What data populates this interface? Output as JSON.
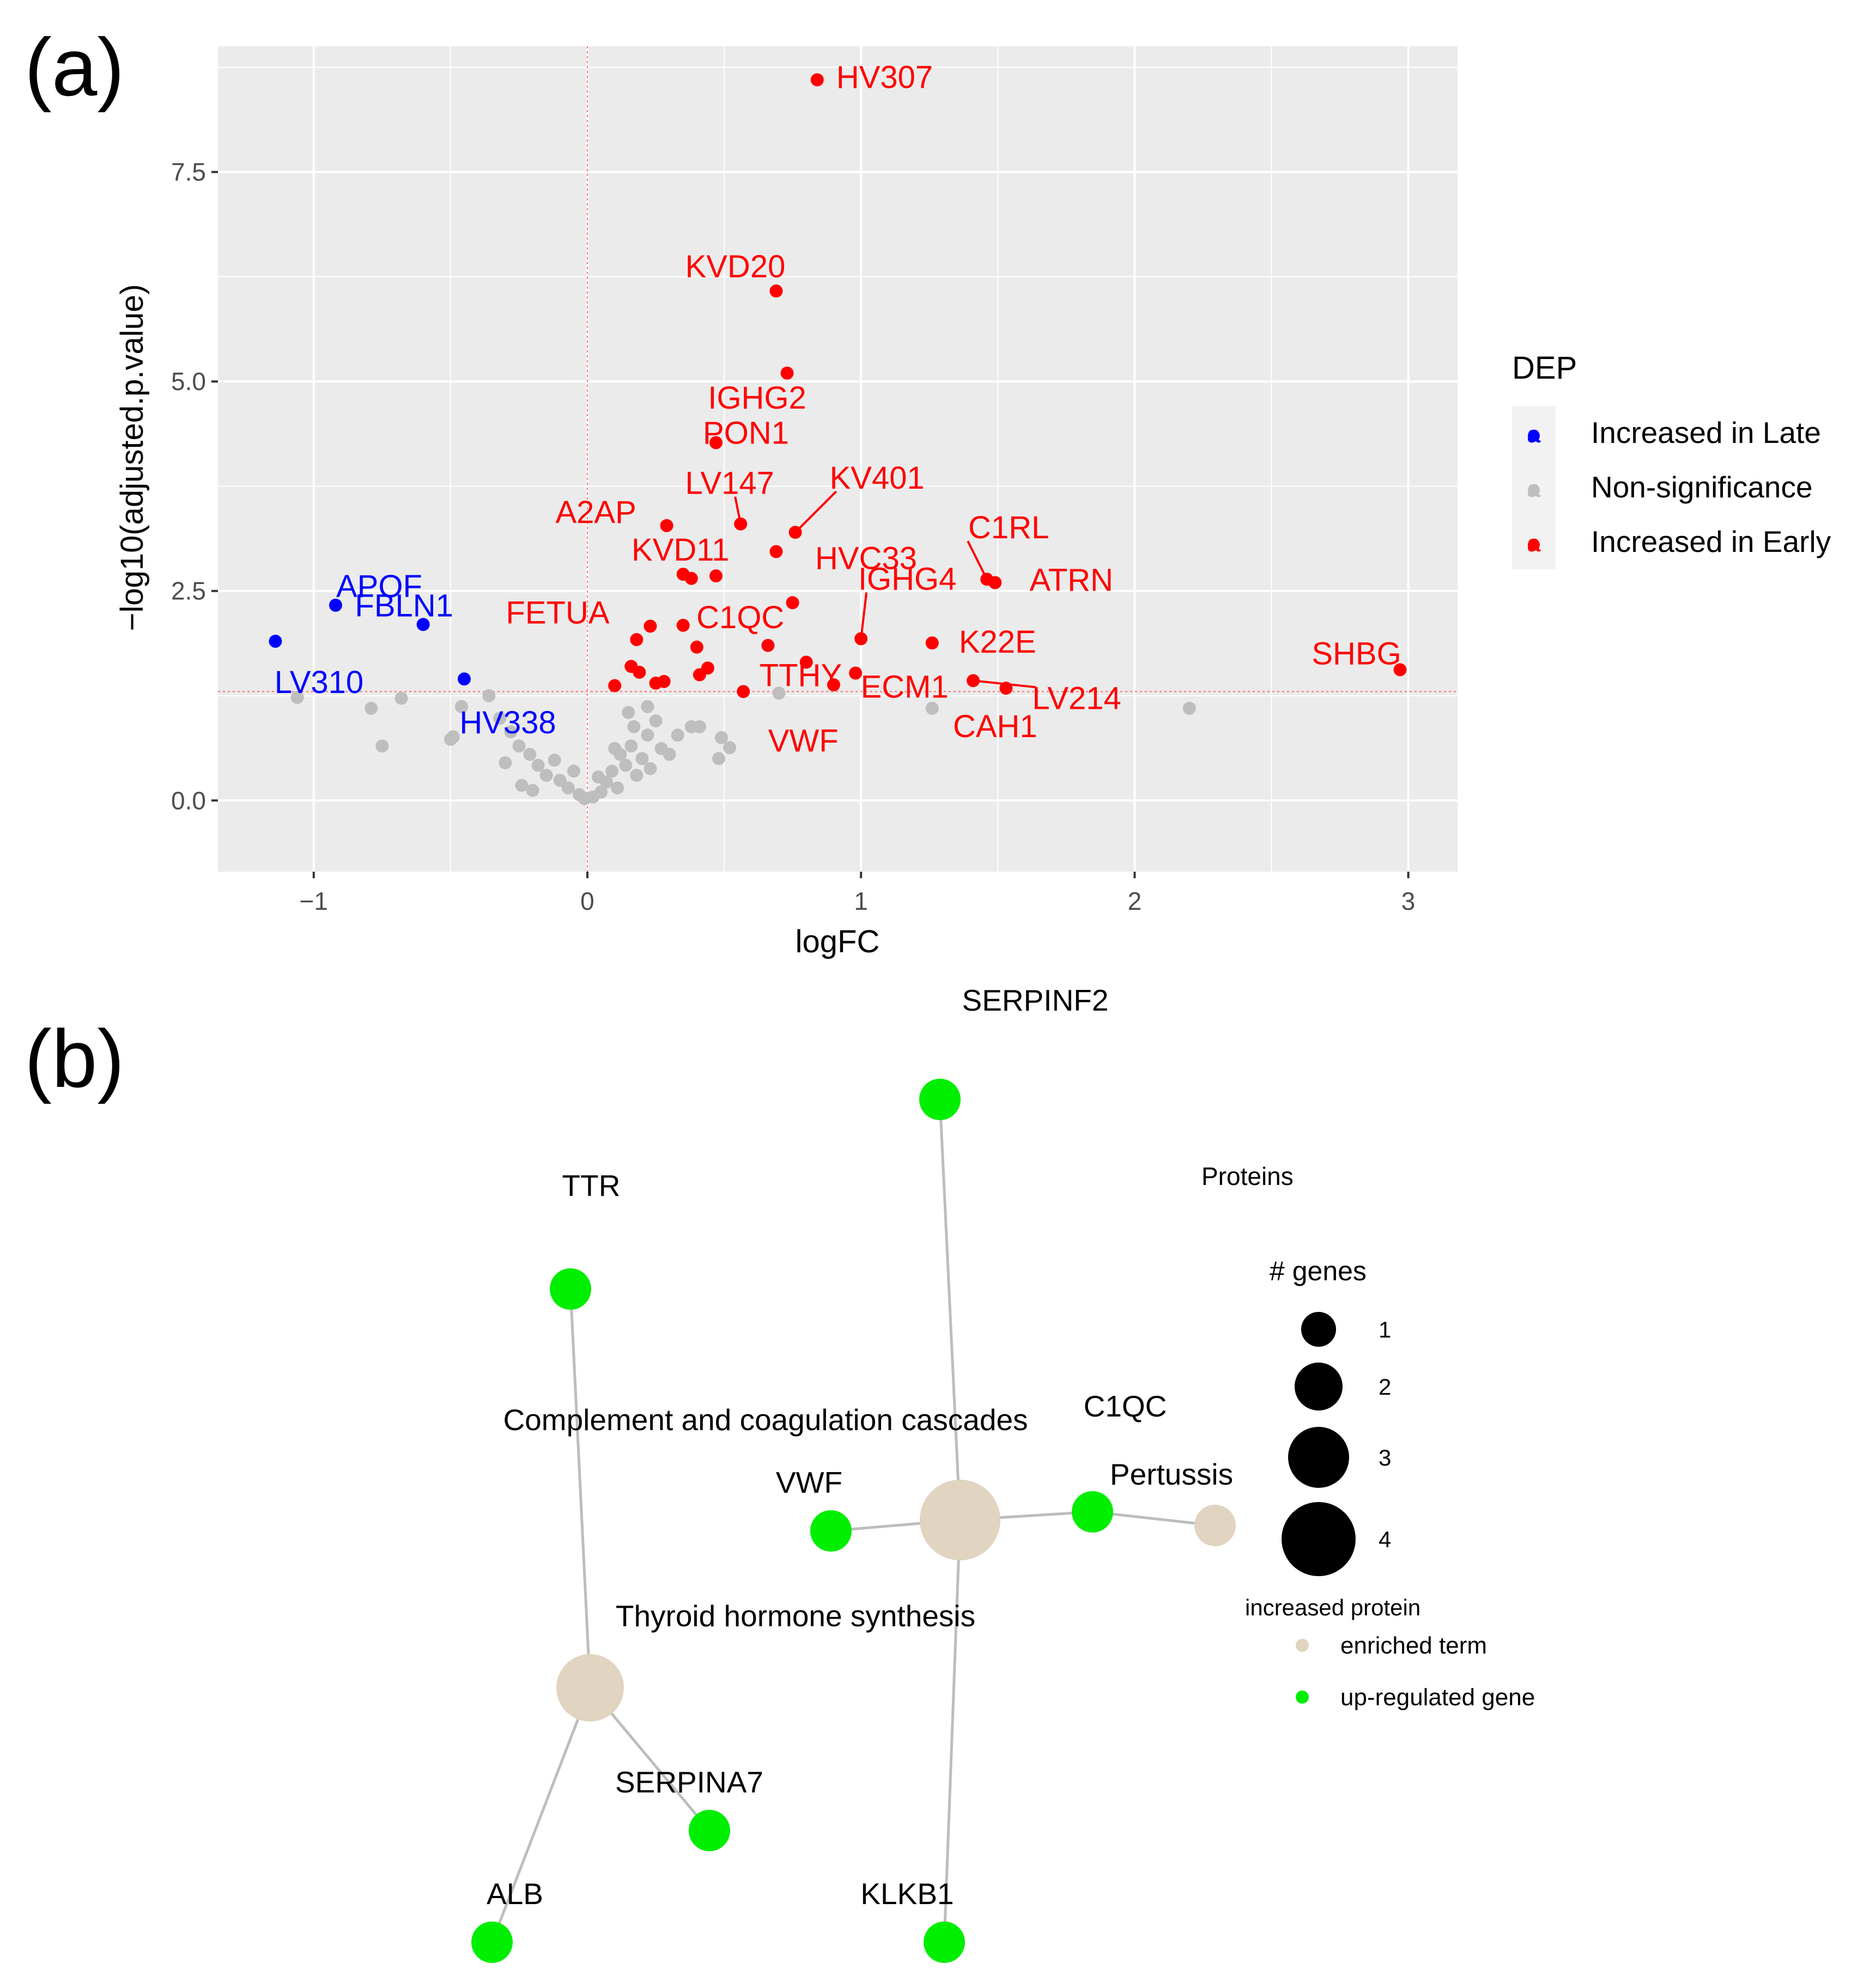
{
  "figure": {
    "panel_a_label": "(a)",
    "panel_b_label": "(b)"
  },
  "chart_data": [
    {
      "type": "scatter",
      "title": "",
      "xlabel": "logFC",
      "ylabel": "−log10(adjusted.p.value)",
      "xlim": [
        -1.35,
        3.18
      ],
      "ylim": [
        -0.85,
        9.0
      ],
      "xticks": [
        {
          "v": -1,
          "label": "−1"
        },
        {
          "v": 0,
          "label": "0"
        },
        {
          "v": 1,
          "label": "1"
        },
        {
          "v": 2,
          "label": "2"
        },
        {
          "v": 3,
          "label": "3"
        }
      ],
      "yticks": [
        {
          "v": 0,
          "label": "0.0"
        },
        {
          "v": 2.5,
          "label": "2.5"
        },
        {
          "v": 5,
          "label": "5.0"
        },
        {
          "v": 7.5,
          "label": "7.5"
        }
      ],
      "grid": true,
      "threshold": {
        "logFC": 0,
        "neglog10p": 1.3
      },
      "colors": {
        "late": "#0000ff",
        "ns": "#bebebe",
        "early": "#ff0000",
        "panel_bg": "#ebebeb",
        "grid": "#ffffff",
        "threshold": "#ff6b6b"
      },
      "legend": {
        "title": "DEP",
        "position": "right",
        "glyph": "a",
        "entries": [
          {
            "label": "Increased in Late",
            "group": "late"
          },
          {
            "label": "Non-significance",
            "group": "ns"
          },
          {
            "label": "Increased in Early",
            "group": "early"
          }
        ]
      },
      "series": [
        {
          "name": "Increased in Late",
          "group": "late",
          "points": [
            {
              "x": -1.14,
              "y": 1.9,
              "label": "LV310"
            },
            {
              "x": -0.92,
              "y": 2.33,
              "label": "APOF"
            },
            {
              "x": -0.6,
              "y": 2.1,
              "label": "FBLN1"
            },
            {
              "x": -0.45,
              "y": 1.45,
              "label": "HV338"
            }
          ]
        },
        {
          "name": "Increased in Early",
          "group": "early",
          "points": [
            {
              "x": 0.84,
              "y": 8.6,
              "label": "HV307"
            },
            {
              "x": 0.69,
              "y": 6.08,
              "label": "KVD20"
            },
            {
              "x": 0.73,
              "y": 5.1,
              "label": "IGHG2"
            },
            {
              "x": 0.47,
              "y": 4.27,
              "label": "PON1"
            },
            {
              "x": 0.56,
              "y": 3.3,
              "label": "LV147"
            },
            {
              "x": 0.76,
              "y": 3.2,
              "label": "KV401"
            },
            {
              "x": 0.29,
              "y": 3.28,
              "label": "A2AP"
            },
            {
              "x": 0.69,
              "y": 2.97,
              "label": "HVC33"
            },
            {
              "x": 1.46,
              "y": 2.64,
              "label": "C1RL"
            },
            {
              "x": 1.49,
              "y": 2.6,
              "label": "ATRN"
            },
            {
              "x": 0.35,
              "y": 2.7,
              "label": "KVD11"
            },
            {
              "x": 0.38,
              "y": 2.65
            },
            {
              "x": 0.47,
              "y": 2.68
            },
            {
              "x": 0.75,
              "y": 2.36
            },
            {
              "x": 0.23,
              "y": 2.08,
              "label": "FETUA"
            },
            {
              "x": 0.35,
              "y": 2.09,
              "label": "C1QC"
            },
            {
              "x": 1.0,
              "y": 1.93,
              "label": "IGHG4"
            },
            {
              "x": 0.18,
              "y": 1.92
            },
            {
              "x": 0.66,
              "y": 1.85,
              "label": "TTHY"
            },
            {
              "x": 1.26,
              "y": 1.88,
              "label": "K22E"
            },
            {
              "x": 0.4,
              "y": 1.83
            },
            {
              "x": 0.8,
              "y": 1.65
            },
            {
              "x": 0.98,
              "y": 1.52,
              "label": "ECM1"
            },
            {
              "x": 1.41,
              "y": 1.43,
              "label": "LV214"
            },
            {
              "x": 1.53,
              "y": 1.34,
              "label": "CAH1"
            },
            {
              "x": 0.57,
              "y": 1.3,
              "label": "VWF"
            },
            {
              "x": 0.9,
              "y": 1.38
            },
            {
              "x": 0.44,
              "y": 1.58
            },
            {
              "x": 0.41,
              "y": 1.5
            },
            {
              "x": 0.16,
              "y": 1.6
            },
            {
              "x": 0.19,
              "y": 1.53
            },
            {
              "x": 0.25,
              "y": 1.4
            },
            {
              "x": 0.28,
              "y": 1.42
            },
            {
              "x": 0.1,
              "y": 1.37
            },
            {
              "x": 2.97,
              "y": 1.56,
              "label": "SHBG"
            }
          ]
        },
        {
          "name": "Non-significance",
          "group": "ns",
          "points": [
            {
              "x": -1.06,
              "y": 1.23
            },
            {
              "x": -0.79,
              "y": 1.1
            },
            {
              "x": -0.75,
              "y": 0.65
            },
            {
              "x": -0.68,
              "y": 1.22
            },
            {
              "x": -0.5,
              "y": 0.73
            },
            {
              "x": -0.49,
              "y": 0.76
            },
            {
              "x": -0.46,
              "y": 1.12
            },
            {
              "x": -0.36,
              "y": 1.25
            },
            {
              "x": -0.32,
              "y": 0.98
            },
            {
              "x": -0.28,
              "y": 0.82
            },
            {
              "x": -0.25,
              "y": 0.65
            },
            {
              "x": -0.21,
              "y": 0.55
            },
            {
              "x": -0.18,
              "y": 0.42
            },
            {
              "x": -0.2,
              "y": 0.12
            },
            {
              "x": -0.15,
              "y": 0.3
            },
            {
              "x": -0.12,
              "y": 0.48
            },
            {
              "x": -0.1,
              "y": 0.24
            },
            {
              "x": -0.07,
              "y": 0.15
            },
            {
              "x": -0.05,
              "y": 0.35
            },
            {
              "x": -0.03,
              "y": 0.07
            },
            {
              "x": -0.01,
              "y": 0.02
            },
            {
              "x": 0.02,
              "y": 0.04
            },
            {
              "x": 0.05,
              "y": 0.1
            },
            {
              "x": 0.07,
              "y": 0.22
            },
            {
              "x": 0.09,
              "y": 0.35
            },
            {
              "x": 0.11,
              "y": 0.15
            },
            {
              "x": 0.12,
              "y": 0.55
            },
            {
              "x": 0.14,
              "y": 0.42
            },
            {
              "x": 0.16,
              "y": 0.65
            },
            {
              "x": 0.18,
              "y": 0.3
            },
            {
              "x": 0.2,
              "y": 0.5
            },
            {
              "x": 0.22,
              "y": 0.78
            },
            {
              "x": 0.15,
              "y": 1.05
            },
            {
              "x": 0.22,
              "y": 1.12
            },
            {
              "x": 0.25,
              "y": 0.95
            },
            {
              "x": 0.27,
              "y": 0.62
            },
            {
              "x": 0.3,
              "y": 0.55
            },
            {
              "x": 0.33,
              "y": 0.78
            },
            {
              "x": 0.38,
              "y": 0.88
            },
            {
              "x": 0.41,
              "y": 0.88
            },
            {
              "x": 0.49,
              "y": 0.75
            },
            {
              "x": 0.48,
              "y": 0.5
            },
            {
              "x": 0.52,
              "y": 0.63
            },
            {
              "x": 0.7,
              "y": 1.28
            },
            {
              "x": 1.26,
              "y": 1.1
            },
            {
              "x": 2.2,
              "y": 1.1
            },
            {
              "x": -0.24,
              "y": 0.18
            },
            {
              "x": 0.04,
              "y": 0.28
            },
            {
              "x": 0.1,
              "y": 0.62
            },
            {
              "x": 0.17,
              "y": 0.88
            },
            {
              "x": 0.23,
              "y": 0.38
            },
            {
              "x": -0.3,
              "y": 0.45
            }
          ]
        }
      ],
      "connectors": [
        "LV147",
        "KV401",
        "C1RL",
        "IGHG4",
        "LV214"
      ]
    },
    {
      "type": "network",
      "colors": {
        "term": "#e1d4c1",
        "gene": "#00ee00",
        "edge": "#bdbdbd"
      },
      "nodes": [
        {
          "id": "SERPINF2",
          "kind": "gene",
          "genes": 1
        },
        {
          "id": "TTR",
          "kind": "gene",
          "genes": 1
        },
        {
          "id": "VWF",
          "kind": "gene",
          "genes": 1
        },
        {
          "id": "C1QC",
          "kind": "gene",
          "genes": 1
        },
        {
          "id": "SERPINA7",
          "kind": "gene",
          "genes": 1
        },
        {
          "id": "ALB",
          "kind": "gene",
          "genes": 1
        },
        {
          "id": "KLKB1",
          "kind": "gene",
          "genes": 1
        },
        {
          "id": "Complement and coagulation cascades",
          "kind": "term",
          "genes": 4
        },
        {
          "id": "Thyroid hormone synthesis",
          "kind": "term",
          "genes": 3
        },
        {
          "id": "Pertussis",
          "kind": "term",
          "genes": 1
        }
      ],
      "edges": [
        [
          "Complement and coagulation cascades",
          "SERPINF2"
        ],
        [
          "Complement and coagulation cascades",
          "VWF"
        ],
        [
          "Complement and coagulation cascades",
          "C1QC"
        ],
        [
          "Complement and coagulation cascades",
          "KLKB1"
        ],
        [
          "Thyroid hormone synthesis",
          "TTR"
        ],
        [
          "Thyroid hormone synthesis",
          "SERPINA7"
        ],
        [
          "Thyroid hormone synthesis",
          "ALB"
        ],
        [
          "Pertussis",
          "C1QC"
        ]
      ],
      "legend": {
        "title": "Proteins",
        "size_title": "# genes",
        "sizes": [
          1,
          2,
          3,
          4
        ],
        "color_title": "increased protein",
        "color_entries": [
          {
            "label": "enriched term",
            "kind": "term"
          },
          {
            "label": "up-regulated gene",
            "kind": "gene"
          }
        ]
      }
    }
  ]
}
